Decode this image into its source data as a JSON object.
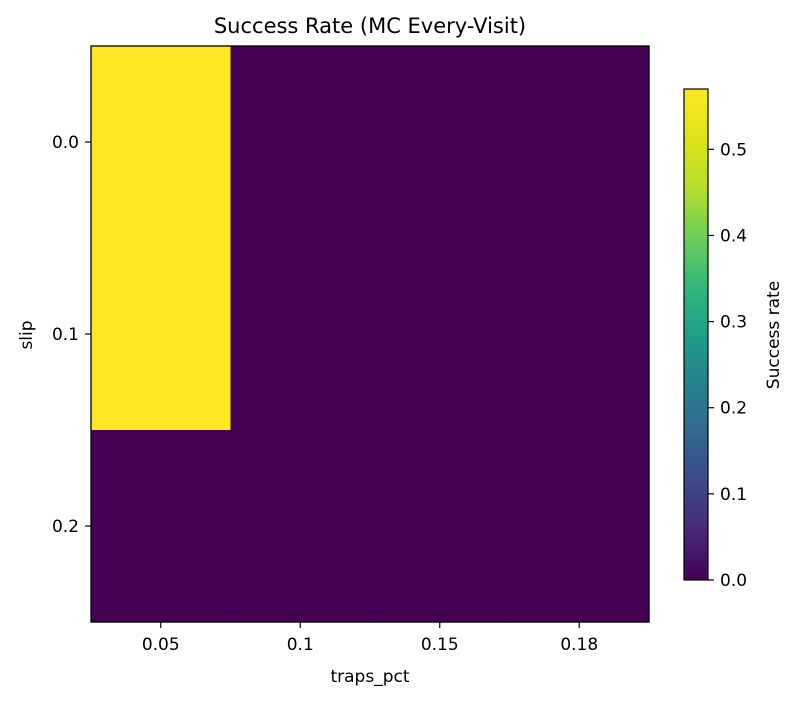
{
  "chart_data": {
    "type": "heatmap",
    "title": "Success Rate (MC Every-Visit)",
    "xlabel": "traps_pct",
    "ylabel": "slip",
    "x_categories": [
      "0.05",
      "0.1",
      "0.15",
      "0.18"
    ],
    "y_categories": [
      "0.0",
      "0.1",
      "0.2"
    ],
    "values": [
      [
        0.57,
        0.0,
        0.0,
        0.0
      ],
      [
        0.57,
        0.0,
        0.0,
        0.0
      ],
      [
        0.0,
        0.0,
        0.0,
        0.0
      ]
    ],
    "colorbar": {
      "label": "Success rate",
      "range": [
        0.0,
        0.57
      ],
      "ticks": [
        "0.0",
        "0.1",
        "0.2",
        "0.3",
        "0.4",
        "0.5"
      ],
      "colormap": "viridis"
    },
    "colors": {
      "low": "#440154",
      "high": "#fde725"
    }
  }
}
